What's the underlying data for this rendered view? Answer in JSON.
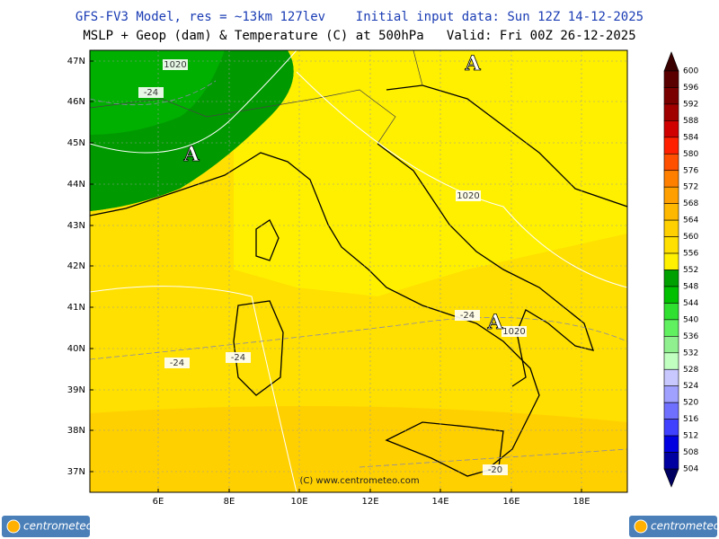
{
  "header": {
    "line1": "GFS-FV3 Model, res = ~13km 127lev    Initial input data: Sun 12Z 14-12-2025",
    "line2": "MSLP + Geop (dam) & Temperature (C) at 500hPa   Valid: Fri 00Z 26-12-2025"
  },
  "map": {
    "lat_labels": [
      "47N",
      "46N",
      "45N",
      "44N",
      "43N",
      "42N",
      "41N",
      "40N",
      "39N",
      "38N",
      "37N"
    ],
    "lon_labels": [
      "6E",
      "8E",
      "10E",
      "12E",
      "14E",
      "16E",
      "18E"
    ],
    "contour_labels": [
      "1020",
      "-24",
      "1020",
      "-24",
      "1020",
      "-24",
      "-24",
      "-20"
    ],
    "pressure_centers": [
      "A",
      "A",
      "A"
    ],
    "watermark": "(C) www.centrometeo.com"
  },
  "colorbar": {
    "labels": [
      600,
      596,
      592,
      588,
      584,
      580,
      576,
      572,
      568,
      564,
      560,
      556,
      552,
      548,
      544,
      540,
      536,
      532,
      528,
      524,
      520,
      516,
      512,
      508,
      504
    ]
  },
  "logos": [
    "centrometeo",
    "centrometeo"
  ]
}
